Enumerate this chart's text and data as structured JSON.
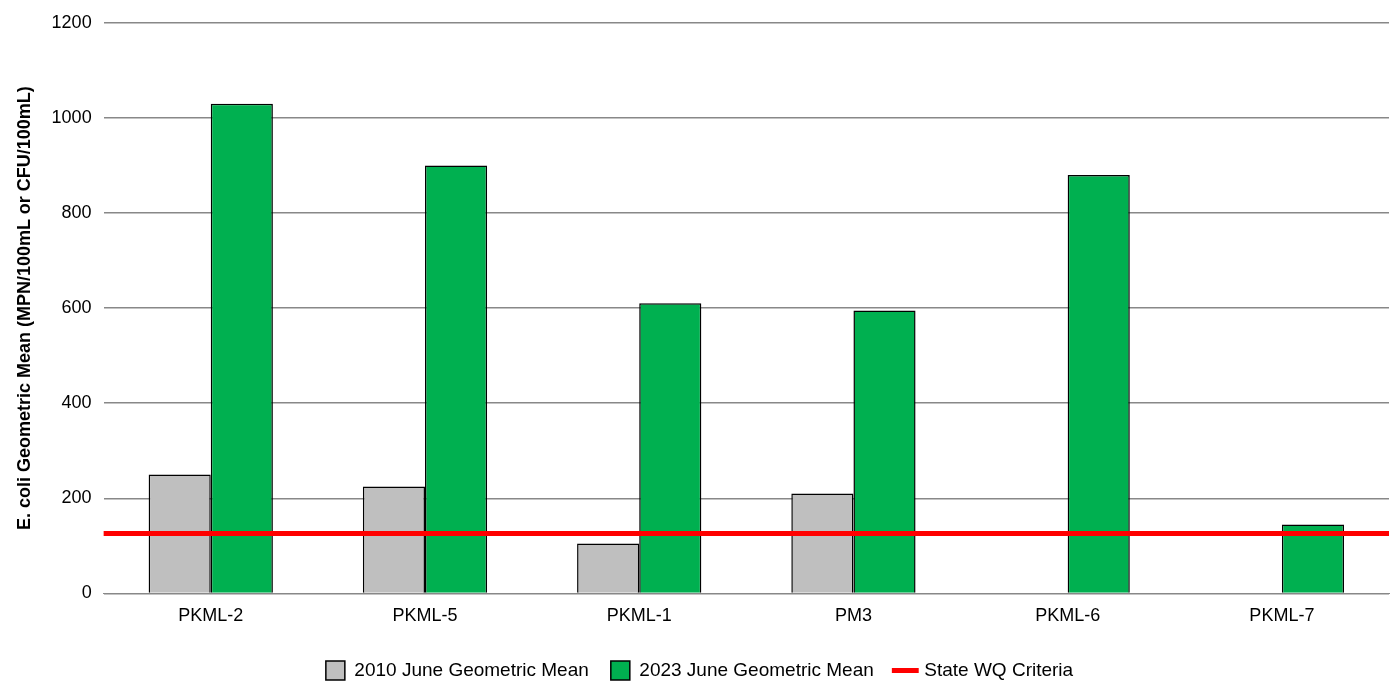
{
  "chart_data": {
    "type": "bar",
    "ylabel": "E. coli Geometric Mean (MPN/100mL or CFU/100mL)",
    "categories": [
      "PKML-2",
      "PKML-5",
      "PKML-1",
      "PM3",
      "PKML-6",
      "PKML-7"
    ],
    "series": [
      {
        "name": "2010 June Geometric Mean",
        "color": "#bfbfbf",
        "values": [
          250,
          225,
          105,
          210,
          null,
          null
        ]
      },
      {
        "name": "2023 June Geometric Mean",
        "color": "#00b050",
        "values": [
          1030,
          900,
          610,
          595,
          880,
          145
        ]
      }
    ],
    "ref_lines": [
      {
        "axis": "y",
        "value": 126,
        "label": "State WQ Criteria",
        "color": "#ff0000"
      }
    ],
    "ylim": [
      0,
      1200
    ],
    "yticks": [
      0,
      200,
      400,
      600,
      800,
      1000,
      1200
    ],
    "grid": "y",
    "legend": "bottom"
  }
}
